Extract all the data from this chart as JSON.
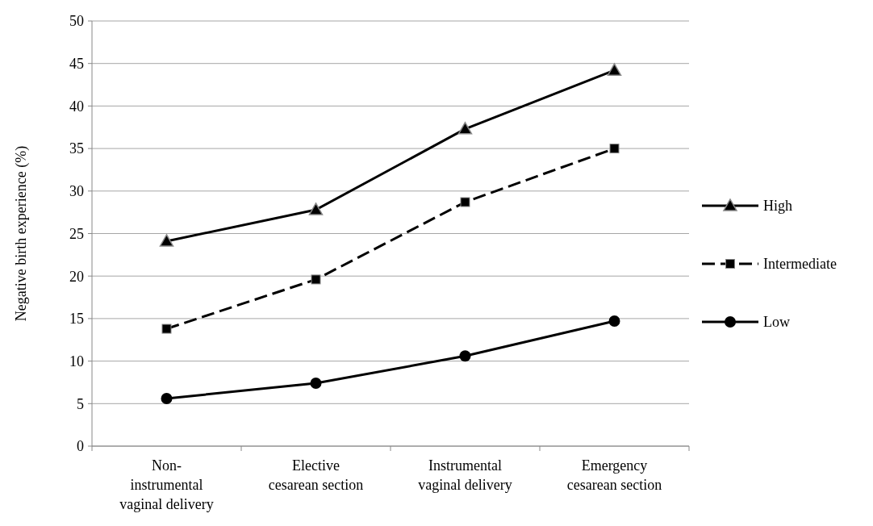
{
  "chart_data": {
    "type": "line",
    "ylabel": "Negative birth experience (%)",
    "categories": [
      "Non-\ninstrumental\nvaginal delivery",
      "Elective\ncesarean section",
      "Instrumental\nvaginal delivery",
      "Emergency\ncesarean section"
    ],
    "series": [
      {
        "name": "High",
        "color": "#000000",
        "marker": "triangle",
        "line_style": "solid",
        "values": [
          24.1,
          27.8,
          37.3,
          44.2
        ]
      },
      {
        "name": "Intermediate",
        "color": "#000000",
        "marker": "square",
        "line_style": "dashed",
        "values": [
          13.8,
          19.6,
          28.7,
          35.0
        ]
      },
      {
        "name": "Low",
        "color": "#000000",
        "marker": "circle",
        "line_style": "solid",
        "values": [
          5.6,
          7.4,
          10.6,
          14.7
        ]
      }
    ],
    "ylim": [
      0,
      50
    ],
    "yticks": [
      0,
      5,
      10,
      15,
      20,
      25,
      30,
      35,
      40,
      45,
      50
    ],
    "grid": "y",
    "legend": "right"
  }
}
